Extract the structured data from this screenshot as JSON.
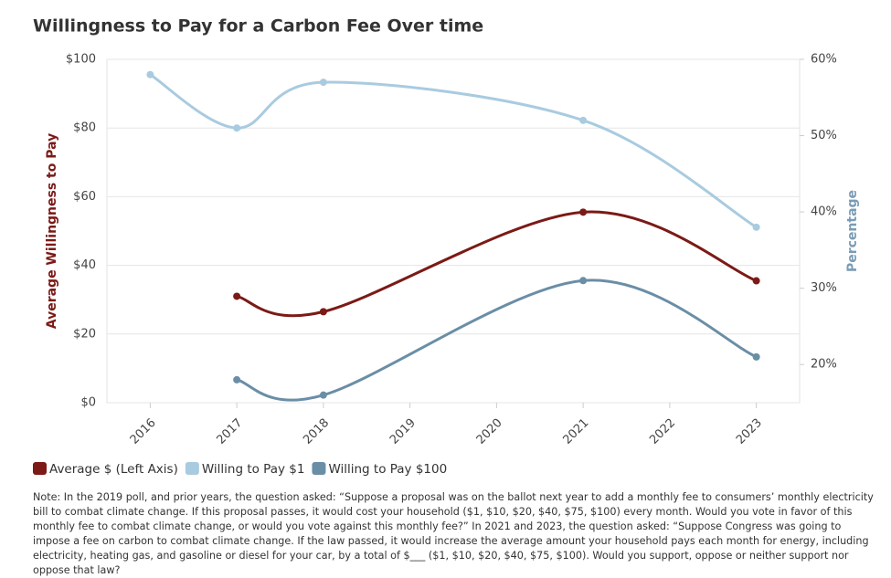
{
  "chart_data": {
    "type": "line",
    "title": "Willingness to Pay for a Carbon Fee Over time",
    "y_label": "Average Willingness to Pay",
    "y2_label": "Percentage",
    "x": [
      2016,
      2017,
      2018,
      2021,
      2023
    ],
    "xlim": [
      2015.5,
      2023.5
    ],
    "xticks": [
      2016,
      2017,
      2018,
      2019,
      2020,
      2021,
      2022,
      2023
    ],
    "ylim": [
      0,
      100
    ],
    "yticks": [
      {
        "value": 0,
        "label": "$0"
      },
      {
        "value": 20,
        "label": "$20"
      },
      {
        "value": 40,
        "label": "$40"
      },
      {
        "value": 60,
        "label": "$60"
      },
      {
        "value": 80,
        "label": "$80"
      },
      {
        "value": 100,
        "label": "$100"
      }
    ],
    "y2lim": [
      15,
      60
    ],
    "y2ticks": [
      {
        "value": 20,
        "label": "20%"
      },
      {
        "value": 30,
        "label": "30%"
      },
      {
        "value": 40,
        "label": "40%"
      },
      {
        "value": 50,
        "label": "50%"
      },
      {
        "value": 60,
        "label": "60%"
      }
    ],
    "grid": true,
    "series": [
      {
        "name": "Average $ (Left Axis)",
        "color": "#7b1a16",
        "values": [
          null,
          31,
          26.5,
          55.5,
          35.5
        ]
      },
      {
        "name": "Willing to Pay $1",
        "color": "#a9cbe0",
        "axis": "y2",
        "values": [
          58,
          51,
          57,
          52,
          38
        ]
      },
      {
        "name": "Willing to Pay $100",
        "color": "#6a8ea6",
        "axis": "y2",
        "values": [
          null,
          18,
          16,
          31,
          21
        ]
      }
    ],
    "note": "Note: In the 2019 poll, and prior years, the question asked: “Suppose a proposal was on the ballot next year to add a monthly fee to consumers’ monthly electricity bill to combat climate change. If this proposal passes, it would cost your household ($1, $10, $20, $40, $75, $100) every month. Would you vote in favor of this monthly fee to combat climate change, or would you vote against this monthly fee?” In 2021 and 2023, the question asked: “Suppose Congress was going to impose a fee on carbon to combat climate change. If the law passed, it would increase the average amount your household pays each month for energy, including electricity, heating gas, and gasoline or diesel for your car, by a total of $___ ($1, $10, $20, $40, $75, $100). Would you support, oppose or neither support nor oppose that law?"
  }
}
